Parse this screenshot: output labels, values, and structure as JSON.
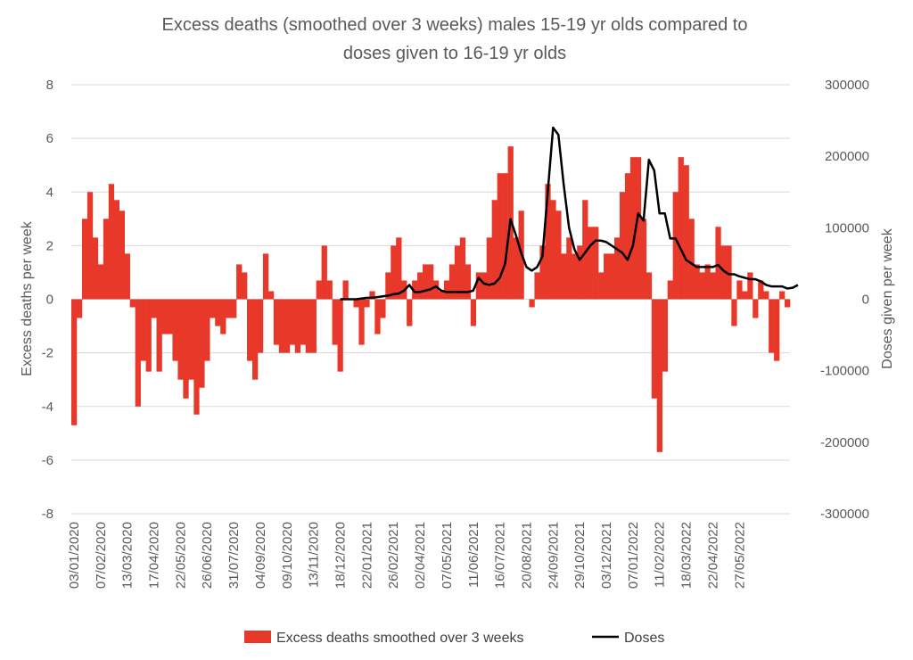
{
  "chart_data": {
    "type": "bar",
    "title_lines": [
      "Excess deaths (smoothed over 3 weeks) males 15-19 yr olds compared to",
      "doses given to 16-19 yr olds"
    ],
    "ylabel_left": "Excess deaths per week",
    "ylabel_right": "Doses given per week",
    "ylim_left": [
      -8,
      8
    ],
    "ylim_right": [
      -300000,
      300000
    ],
    "yticks_left": [
      -8,
      -6,
      -4,
      -2,
      0,
      2,
      4,
      6,
      8
    ],
    "yticks_right": [
      -300000,
      -200000,
      -100000,
      0,
      100000,
      200000,
      300000
    ],
    "ytick_labels_left": [
      "-8",
      "-6",
      "-4",
      "-2",
      "0",
      "2",
      "4",
      "6",
      "8"
    ],
    "ytick_labels_right": [
      "-300000",
      "-200000",
      "-100000",
      "0",
      "100000",
      "200000",
      "300000"
    ],
    "x_tick_labels": [
      "03/01/2020",
      "07/02/2020",
      "13/03/2020",
      "17/04/2020",
      "22/05/2020",
      "26/06/2020",
      "31/07/2020",
      "04/09/2020",
      "09/10/2020",
      "13/11/2020",
      "18/12/2020",
      "22/01/2021",
      "26/02/2021",
      "02/04/2021",
      "07/05/2021",
      "11/06/2021",
      "16/07/2021",
      "20/08/2021",
      "24/09/2021",
      "29/10/2021",
      "03/12/2021",
      "07/01/2022",
      "11/02/2022",
      "18/03/2022",
      "22/04/2022",
      "27/05/2022"
    ],
    "x_tick_every_weeks": 5,
    "grid": true,
    "legend_position": "bottom",
    "series": [
      {
        "name": "Excess deaths smoothed over 3 weeks",
        "type": "bar",
        "axis": "left",
        "color": "#e8382a",
        "values": [
          -4.7,
          -0.7,
          3.0,
          4.0,
          2.3,
          1.3,
          3.0,
          4.3,
          3.7,
          3.3,
          1.7,
          -0.3,
          -4.0,
          -2.3,
          -2.7,
          -0.7,
          -2.7,
          -1.3,
          -1.3,
          -2.3,
          -3.0,
          -3.7,
          -3.0,
          -4.3,
          -3.3,
          -2.3,
          -0.7,
          -1.0,
          -1.3,
          -0.7,
          -0.7,
          1.3,
          1.0,
          -2.3,
          -3.0,
          -2.0,
          1.7,
          0.3,
          -1.7,
          -2.0,
          -2.0,
          -1.7,
          -2.0,
          -1.7,
          -2.0,
          -2.0,
          0.7,
          2.0,
          0.7,
          -1.7,
          -2.7,
          0.7,
          0.0,
          -0.3,
          -1.7,
          -0.3,
          0.3,
          -1.3,
          -0.7,
          1.0,
          2.0,
          2.3,
          0.7,
          -1.0,
          0.7,
          1.0,
          1.3,
          1.3,
          0.7,
          0.3,
          0.7,
          1.3,
          2.0,
          2.3,
          1.3,
          -1.0,
          1.0,
          1.0,
          2.3,
          3.7,
          4.7,
          4.7,
          5.7,
          2.3,
          3.3,
          0.0,
          -0.3,
          1.0,
          2.0,
          4.3,
          3.7,
          3.3,
          1.7,
          2.3,
          1.7,
          2.0,
          3.7,
          2.7,
          2.7,
          1.0,
          1.7,
          1.7,
          2.3,
          4.0,
          4.7,
          5.3,
          5.3,
          3.0,
          1.0,
          -3.7,
          -5.7,
          -2.7,
          0.7,
          4.0,
          5.3,
          5.0,
          3.0,
          1.3,
          1.0,
          1.3,
          1.0,
          2.7,
          2.0,
          2.0,
          -1.0,
          0.7,
          0.3,
          1.0,
          -0.7,
          0.7,
          0.3,
          -2.0,
          -2.3,
          0.3,
          -0.3
        ]
      },
      {
        "name": "Doses",
        "type": "line",
        "axis": "right",
        "color": "#000000",
        "start_week_index": 50,
        "values": [
          0,
          0,
          0,
          0,
          1000,
          2000,
          2000,
          3000,
          4000,
          5000,
          7000,
          8000,
          12000,
          20000,
          10000,
          10000,
          12000,
          14000,
          18000,
          12000,
          10000,
          10000,
          10000,
          10000,
          10000,
          12000,
          30000,
          22000,
          20000,
          22000,
          30000,
          50000,
          112000,
          90000,
          65000,
          45000,
          40000,
          45000,
          60000,
          150000,
          240000,
          230000,
          160000,
          100000,
          70000,
          55000,
          65000,
          75000,
          82000,
          82000,
          80000,
          75000,
          70000,
          65000,
          55000,
          75000,
          120000,
          110000,
          195000,
          180000,
          120000,
          120000,
          85000,
          85000,
          70000,
          55000,
          50000,
          45000,
          45000,
          45000,
          45000,
          48000,
          40000,
          35000,
          35000,
          32000,
          30000,
          28000,
          28000,
          25000,
          20000,
          18000,
          18000,
          18000,
          15000,
          16000,
          20000
        ]
      }
    ]
  }
}
